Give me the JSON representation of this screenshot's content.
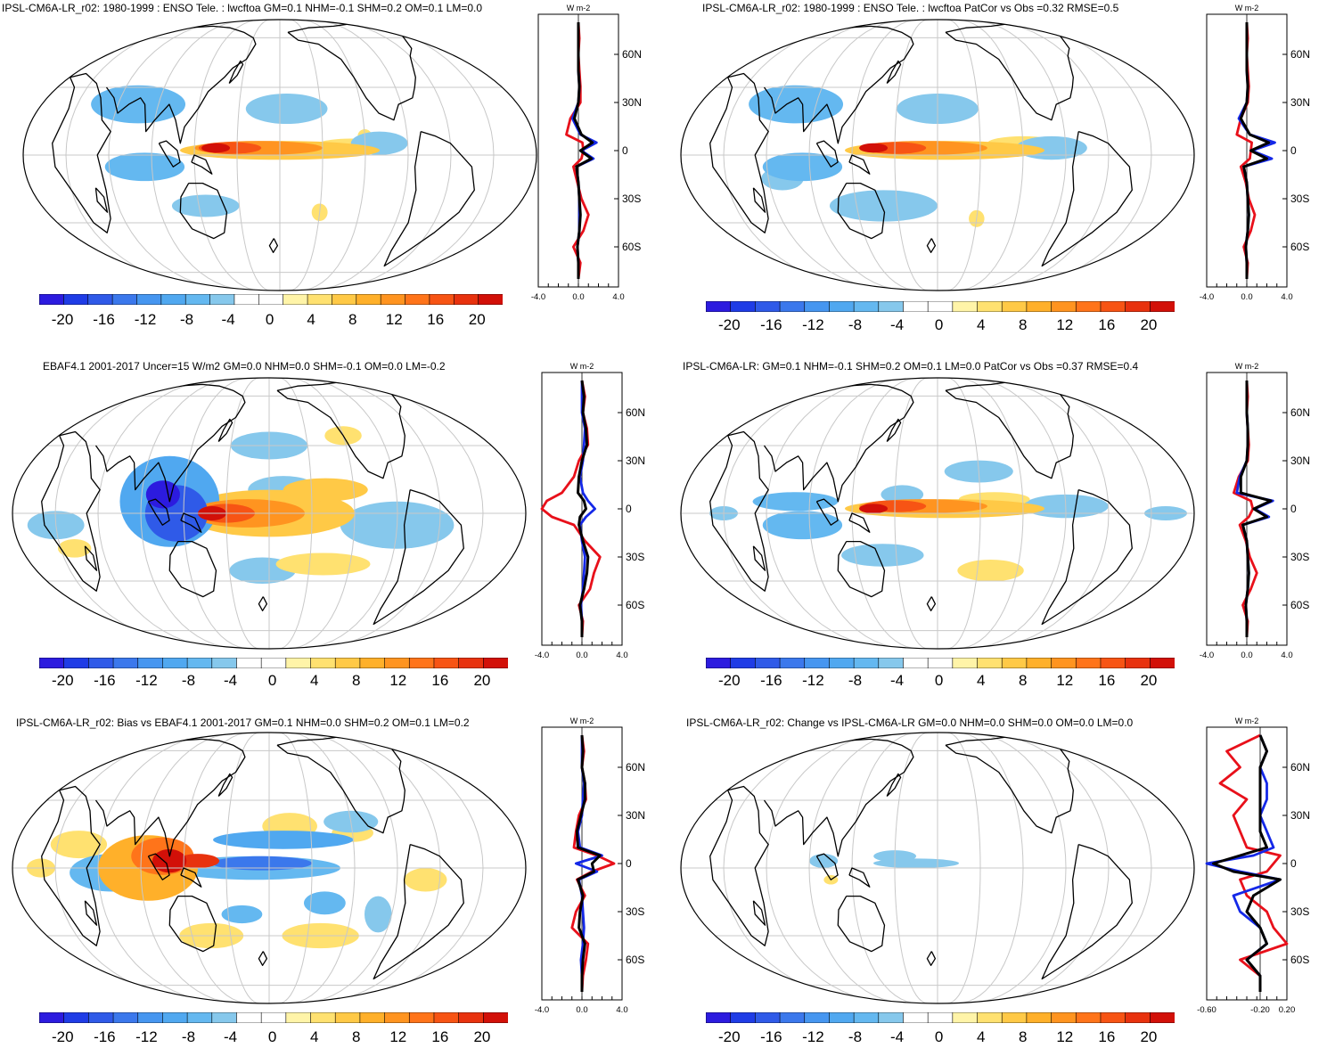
{
  "colors": {
    "palette": [
      "#2c1bdf",
      "#1f3ce6",
      "#2f5ae8",
      "#3b78ec",
      "#4696f0",
      "#50a8f0",
      "#64b8f0",
      "#86c8ec",
      "#ffffff",
      "#ffffff",
      "#fff4a8",
      "#ffe170",
      "#ffc946",
      "#ffb02a",
      "#ff9420",
      "#ff741a",
      "#f75414",
      "#e8320e",
      "#d21008"
    ],
    "obs_line": "#e8101a",
    "model_line": "#1428e8",
    "diff_line": "#000000",
    "grid": "#c8c8c8",
    "coast": "#000000"
  },
  "colorbar": {
    "tick_labels": [
      "-20",
      "-16",
      "-12",
      "-8",
      "-4",
      "0",
      "4",
      "8",
      "12",
      "16",
      "20"
    ]
  },
  "zonal_units": "W m-2",
  "panels": [
    {
      "id": "p1",
      "title": "IPSL-CM6A-LR_r02: 1980-1999 : ENSO Tele. : lwcftoa GM=0.1 NHM=-0.1 SHM=0.2 OM=0.1 LM=0.0",
      "lat_ticks": [
        "60N",
        "30N",
        "0",
        "30S",
        "60S"
      ],
      "x_ticks": [
        "-4.0",
        "0.0",
        "4.0"
      ],
      "map_labels": []
    },
    {
      "id": "p2",
      "title": "IPSL-CM6A-LR_r02: 1980-1999 : ENSO Tele. : lwcftoa PatCor vs Obs =0.32 RMSE=0.5",
      "lat_ticks": [
        "60N",
        "30N",
        "0",
        "30S",
        "60S"
      ],
      "x_ticks": [
        "-4.0",
        "0.0",
        "4.0"
      ],
      "map_labels": []
    },
    {
      "id": "p3",
      "title": "EBAF4.1 2001-2017 Uncer=15 W/m2 GM=0.0 NHM=0.0 SHM=-0.1 OM=0.0 LM=-0.2",
      "lat_ticks": [
        "60N",
        "30N",
        "0",
        "30S",
        "60S"
      ],
      "x_ticks": [
        "-4.0",
        "0.0",
        "4.0"
      ],
      "map_labels": []
    },
    {
      "id": "p4",
      "title": "IPSL-CM6A-LR: GM=0.1 NHM=-0.1 SHM=0.2 OM=0.1 LM=0.0 PatCor vs Obs =0.37 RMSE=0.4",
      "lat_ticks": [
        "60N",
        "30N",
        "0",
        "30S",
        "60S"
      ],
      "x_ticks": [
        "-4.0",
        "0.0",
        "4.0"
      ],
      "map_labels": []
    },
    {
      "id": "p5",
      "title": "IPSL-CM6A-LR_r02: Bias vs EBAF4.1 2001-2017 GM=0.1 NHM=0.0 SHM=0.2 OM=0.1 LM=0.2",
      "lat_ticks": [
        "60N",
        "30N",
        "0",
        "30S",
        "60S"
      ],
      "x_ticks": [
        "-4.0",
        "0.0",
        "4.0"
      ],
      "map_labels": []
    },
    {
      "id": "p6",
      "title": "IPSL-CM6A-LR_r02: Change vs IPSL-CM6A-LR GM=0.0 NHM=0.0 SHM=0.0 OM=0.0 LM=0.0",
      "lat_ticks": [
        "60N",
        "30N",
        "0",
        "30S",
        "60S"
      ],
      "x_ticks": [
        "-0.60",
        "-0.20",
        "0.20"
      ],
      "map_labels": []
    }
  ],
  "chart_data": [
    {
      "type": "heatmap",
      "title": "IPSL-CM6A-LR_r02: 1980-1999 : ENSO Tele. : lwcftoa GM=0.1 NHM=-0.1 SHM=0.2 OM=0.1 LM=0.0",
      "colorbar_levels": [
        -20,
        -16,
        -12,
        -8,
        -4,
        0,
        4,
        8,
        12,
        16,
        20
      ],
      "zonal_mean_profile": {
        "xlim": [
          -4.0,
          4.0
        ],
        "latitudes": [
          80,
          70,
          60,
          50,
          40,
          30,
          20,
          10,
          5,
          0,
          -5,
          -10,
          -20,
          -30,
          -40,
          -50,
          -60,
          -70,
          -80
        ],
        "series": [
          {
            "name": "obs",
            "color": "red",
            "values": [
              0,
              0.1,
              0,
              0.1,
              0.2,
              0.2,
              -0.8,
              -1.2,
              0.4,
              0.5,
              0.3,
              -0.5,
              -0.1,
              0.3,
              1.0,
              0.5,
              -0.5,
              0.2,
              0
            ]
          },
          {
            "name": "model",
            "color": "blue",
            "values": [
              0,
              0,
              0,
              0,
              0.1,
              0,
              -0.6,
              0.2,
              1.8,
              0.3,
              1.5,
              -0.2,
              0,
              0.1,
              0.1,
              0.1,
              -0.1,
              0,
              0
            ]
          },
          {
            "name": "diff",
            "color": "black",
            "values": [
              0,
              0,
              0,
              0,
              0.1,
              0,
              -0.4,
              0.3,
              1.4,
              0.2,
              1.3,
              -0.2,
              0,
              0.1,
              0.2,
              0.1,
              -0.1,
              0,
              0
            ]
          }
        ]
      }
    },
    {
      "type": "heatmap",
      "title": "IPSL-CM6A-LR_r02: 1980-1999 : ENSO Tele. : lwcftoa PatCor vs Obs =0.32 RMSE=0.5",
      "colorbar_levels": [
        -20,
        -16,
        -12,
        -8,
        -4,
        0,
        4,
        8,
        12,
        16,
        20
      ],
      "zonal_mean_profile": {
        "xlim": [
          -4.0,
          4.0
        ],
        "latitudes": [
          80,
          70,
          60,
          50,
          40,
          30,
          20,
          10,
          5,
          0,
          -5,
          -10,
          -20,
          -30,
          -40,
          -50,
          -60,
          -70,
          -80
        ],
        "series": [
          {
            "name": "obs",
            "color": "red",
            "values": [
              0,
              0.1,
              0,
              0.1,
              0.2,
              0.1,
              -0.6,
              -1.0,
              0.5,
              0.4,
              0.3,
              -0.6,
              -0.1,
              0.2,
              0.8,
              0.4,
              -0.3,
              0.1,
              0
            ]
          },
          {
            "name": "model",
            "color": "blue",
            "values": [
              0,
              0,
              0,
              0,
              0.1,
              0,
              -0.8,
              0.3,
              2.8,
              0.5,
              2.5,
              -0.3,
              0,
              0.1,
              0.2,
              0.1,
              -0.1,
              0,
              0
            ]
          },
          {
            "name": "diff",
            "color": "black",
            "values": [
              0,
              0,
              0,
              0,
              0.1,
              0,
              -0.6,
              0.3,
              2.2,
              0.4,
              2.0,
              -0.3,
              0,
              0.1,
              0.2,
              0.1,
              -0.1,
              0,
              0
            ]
          }
        ]
      }
    },
    {
      "type": "heatmap",
      "title": "EBAF4.1 2001-2017 Uncer=15 W/m2 GM=0.0 NHM=0.0 SHM=-0.1 OM=0.0 LM=-0.2",
      "colorbar_levels": [
        -20,
        -16,
        -12,
        -8,
        -4,
        0,
        4,
        8,
        12,
        16,
        20
      ],
      "zonal_mean_profile": {
        "xlim": [
          -4.0,
          4.0
        ],
        "latitudes": [
          80,
          70,
          60,
          50,
          40,
          30,
          20,
          10,
          5,
          0,
          -5,
          -10,
          -20,
          -30,
          -40,
          -50,
          -60,
          -70,
          -80
        ],
        "series": [
          {
            "name": "obs",
            "color": "red",
            "values": [
              0,
              0.3,
              0.1,
              0.5,
              0.6,
              -0.3,
              -0.8,
              -2.0,
              -3.5,
              -4.0,
              -3.0,
              -0.8,
              0.3,
              1.8,
              1.2,
              0.8,
              -0.3,
              0.1,
              0
            ]
          },
          {
            "name": "model",
            "color": "blue",
            "values": [
              0,
              0,
              0,
              0.3,
              0.2,
              0.1,
              -0.2,
              0.1,
              0.6,
              1.3,
              0.4,
              -0.2,
              0,
              0.3,
              0.2,
              0.1,
              -0.1,
              0,
              0
            ]
          },
          {
            "name": "diff",
            "color": "black",
            "values": [
              0,
              0.2,
              0.1,
              0.4,
              0.5,
              0,
              -0.3,
              -0.4,
              0.2,
              0.4,
              -0.2,
              -0.3,
              0.1,
              0.6,
              0.5,
              0.2,
              -0.2,
              0,
              0
            ]
          }
        ]
      }
    },
    {
      "type": "heatmap",
      "title": "IPSL-CM6A-LR: GM=0.1 NHM=-0.1 SHM=0.2 OM=0.1 LM=0.0 PatCor vs Obs =0.37 RMSE=0.4",
      "colorbar_levels": [
        -20,
        -16,
        -12,
        -8,
        -4,
        0,
        4,
        8,
        12,
        16,
        20
      ],
      "zonal_mean_profile": {
        "xlim": [
          -4.0,
          4.0
        ],
        "latitudes": [
          80,
          70,
          60,
          50,
          40,
          30,
          20,
          10,
          5,
          0,
          -5,
          -10,
          -20,
          -30,
          -40,
          -50,
          -60,
          -70,
          -80
        ],
        "series": [
          {
            "name": "obs",
            "color": "red",
            "values": [
              0,
              0.1,
              0,
              0.1,
              0.2,
              0.1,
              -0.8,
              -1.3,
              0.4,
              0.6,
              0.2,
              -0.7,
              -0.1,
              0.3,
              1.0,
              0.4,
              -0.4,
              0.1,
              0
            ]
          },
          {
            "name": "model",
            "color": "blue",
            "values": [
              0,
              0,
              0,
              0.1,
              0.1,
              0,
              -0.7,
              -1.0,
              2.6,
              0.8,
              2.2,
              -0.4,
              0,
              0.1,
              0.2,
              0.1,
              -0.1,
              0,
              0
            ]
          },
          {
            "name": "diff",
            "color": "black",
            "values": [
              0,
              0,
              0,
              0.1,
              0.1,
              0,
              -0.6,
              -0.6,
              2.4,
              0.7,
              2.0,
              -0.4,
              0,
              0.1,
              0.2,
              0.1,
              -0.1,
              0,
              0
            ]
          }
        ]
      }
    },
    {
      "type": "heatmap",
      "title": "IPSL-CM6A-LR_r02: Bias vs EBAF4.1 2001-2017 GM=0.1 NHM=0.0 SHM=0.2 OM=0.1 LM=0.2",
      "colorbar_levels": [
        -20,
        -16,
        -12,
        -8,
        -4,
        0,
        4,
        8,
        12,
        16,
        20
      ],
      "zonal_mean_profile": {
        "xlim": [
          -4.0,
          4.0
        ],
        "latitudes": [
          80,
          70,
          60,
          50,
          40,
          30,
          20,
          10,
          5,
          0,
          -5,
          -10,
          -20,
          -30,
          -40,
          -50,
          -60,
          -70,
          -80
        ],
        "series": [
          {
            "name": "obs",
            "color": "red",
            "values": [
              0,
              0.2,
              0,
              0.3,
              0.4,
              -0.3,
              -0.6,
              -0.8,
              1.5,
              3.2,
              1.0,
              -0.5,
              0.3,
              -0.6,
              -1.0,
              0.6,
              0.4,
              0.1,
              0
            ]
          },
          {
            "name": "model",
            "color": "blue",
            "values": [
              0,
              0,
              0,
              0.2,
              0.1,
              0,
              -0.4,
              -0.2,
              2.0,
              -0.6,
              1.5,
              -0.3,
              0,
              0.1,
              0.2,
              0.1,
              -0.1,
              0,
              0
            ]
          },
          {
            "name": "diff",
            "color": "black",
            "values": [
              0,
              0.1,
              0,
              0.3,
              0.3,
              -0.1,
              -0.5,
              -0.4,
              1.8,
              1.0,
              1.2,
              -0.4,
              0.1,
              -0.2,
              -0.3,
              0.3,
              0.1,
              0,
              0
            ]
          }
        ]
      }
    },
    {
      "type": "heatmap",
      "title": "IPSL-CM6A-LR_r02: Change vs IPSL-CM6A-LR GM=0.0 NHM=0.0 SHM=0.0 OM=0.0 LM=0.0",
      "colorbar_levels": [
        -20,
        -16,
        -12,
        -8,
        -4,
        0,
        4,
        8,
        12,
        16,
        20
      ],
      "zonal_mean_profile": {
        "xlim": [
          -0.8,
          0.4
        ],
        "latitudes": [
          80,
          70,
          60,
          50,
          40,
          30,
          20,
          10,
          5,
          0,
          -5,
          -10,
          -20,
          -30,
          -40,
          -50,
          -60,
          -70,
          -80
        ],
        "series": [
          {
            "name": "obs",
            "color": "red",
            "values": [
              0.0,
              -0.5,
              -0.3,
              -0.6,
              -0.2,
              -0.4,
              -0.3,
              -0.2,
              0.3,
              0.2,
              0.1,
              -0.3,
              -0.2,
              0.1,
              0.2,
              0.4,
              -0.3,
              0.0,
              0.0
            ]
          },
          {
            "name": "model",
            "color": "blue",
            "values": [
              0.0,
              0.1,
              0.0,
              0.1,
              0.1,
              0.0,
              0.1,
              0.2,
              -0.1,
              -0.8,
              -0.3,
              0.3,
              -0.4,
              -0.3,
              0.0,
              0.1,
              -0.2,
              0.0,
              0.0
            ]
          },
          {
            "name": "diff",
            "color": "black",
            "values": [
              0.0,
              0.1,
              0.0,
              0.0,
              0.0,
              0.0,
              0.0,
              0.1,
              -0.3,
              -0.7,
              -0.4,
              0.3,
              -0.1,
              -0.2,
              0.0,
              0.1,
              -0.2,
              0.0,
              0.0
            ]
          }
        ]
      }
    }
  ]
}
